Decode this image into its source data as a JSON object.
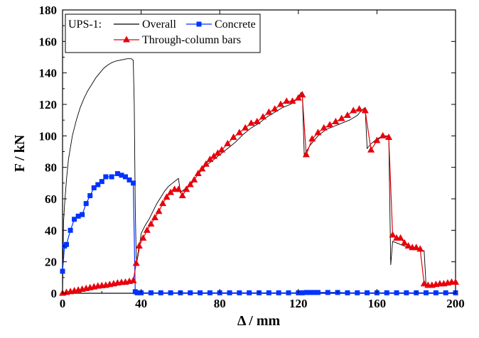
{
  "chart_data": {
    "type": "line",
    "legend_title": "UPS-1:",
    "legend_placement": "top-left",
    "xlabel": "Δ / mm",
    "ylabel": "F / kN",
    "xlim": [
      0,
      200
    ],
    "ylim": [
      0,
      180
    ],
    "xticks": [
      0,
      40,
      80,
      120,
      160,
      200
    ],
    "yticks": [
      0,
      20,
      40,
      60,
      80,
      100,
      120,
      140,
      160,
      180
    ],
    "grid": false,
    "series": [
      {
        "name": "Overall",
        "color": "#000000",
        "marker": "none",
        "x": [
          0,
          0.5,
          1,
          2,
          3,
          5,
          7,
          9,
          11,
          13,
          15,
          17,
          19,
          21,
          23,
          25,
          27,
          29,
          31,
          33,
          34,
          35,
          36,
          36.5,
          37,
          37.5,
          38,
          39,
          40,
          42,
          44,
          46,
          48,
          50,
          52,
          54,
          56,
          58,
          59,
          60,
          61,
          62,
          64,
          66,
          68,
          70,
          72,
          74,
          76,
          78,
          80,
          84,
          88,
          92,
          96,
          100,
          104,
          108,
          112,
          116,
          118,
          120,
          121,
          122,
          123,
          126,
          130,
          134,
          138,
          142,
          146,
          150,
          152,
          153,
          154,
          155,
          157,
          160,
          163,
          165,
          166,
          166.5,
          167,
          168,
          170,
          172,
          174,
          176,
          178,
          180,
          182,
          183,
          184,
          185,
          190,
          195,
          200
        ],
        "y": [
          0,
          45,
          56,
          72,
          85,
          100,
          110,
          118,
          124,
          129,
          133,
          137,
          140,
          143,
          145,
          146.5,
          147.5,
          148,
          148.5,
          149,
          149,
          149,
          148,
          120,
          55,
          22,
          21,
          28,
          38,
          43,
          47,
          52,
          57,
          61,
          65,
          68,
          70,
          72,
          73,
          64,
          65,
          66,
          68,
          70,
          74,
          77,
          80,
          82,
          84,
          86,
          88,
          92,
          96,
          101,
          105,
          108,
          112,
          115,
          118,
          120,
          122,
          124,
          127,
          128,
          88,
          94,
          100,
          104,
          106,
          108,
          110,
          113,
          116,
          117,
          118,
          92,
          95,
          98,
          100,
          100,
          100,
          60,
          18,
          33,
          32,
          31,
          30,
          29,
          28,
          28,
          28,
          27,
          27,
          5,
          5,
          5,
          6
        ]
      },
      {
        "name": "Concrete",
        "color": "#0033ff",
        "marker": "square",
        "x": [
          0,
          1,
          2,
          4,
          6,
          8,
          10,
          12,
          14,
          16,
          18,
          20,
          22,
          25,
          28,
          30,
          32,
          34,
          36,
          37,
          38,
          40,
          45,
          50,
          55,
          60,
          65,
          70,
          75,
          80,
          85,
          90,
          95,
          100,
          105,
          110,
          115,
          120,
          122,
          124,
          126,
          128,
          130,
          135,
          140,
          145,
          150,
          155,
          160,
          165,
          170,
          175,
          180,
          185,
          190,
          195,
          200
        ],
        "y": [
          14,
          30,
          31,
          40,
          47,
          49,
          50,
          57,
          62,
          67,
          69,
          71,
          74,
          74,
          76,
          75,
          74,
          72,
          70,
          1,
          0.3,
          0.3,
          0.3,
          0.3,
          0.3,
          0.3,
          0.3,
          0.3,
          0.3,
          0.3,
          0.3,
          0.3,
          0.3,
          0.3,
          0.3,
          0.3,
          0.3,
          0.3,
          0.3,
          0.5,
          0.5,
          0.5,
          0.5,
          0.5,
          0.5,
          0.3,
          0.3,
          0.3,
          0.3,
          0.3,
          0.3,
          0.3,
          0.3,
          0.3,
          0.3,
          0.3,
          0.3
        ]
      },
      {
        "name": "Through-column bars",
        "color": "#e8000b",
        "marker": "triangle",
        "x": [
          0,
          2,
          4,
          6,
          8,
          10,
          12,
          14,
          16,
          18,
          20,
          22,
          24,
          26,
          28,
          30,
          32,
          34,
          36,
          37.5,
          39,
          41,
          43,
          45,
          47,
          49,
          51,
          53,
          55,
          57,
          59,
          61,
          63,
          65,
          67,
          69,
          71,
          73,
          75,
          77,
          79,
          81,
          84,
          87,
          90,
          93,
          96,
          99,
          102,
          105,
          108,
          111,
          114,
          117,
          120,
          122,
          124,
          127,
          130,
          133,
          136,
          139,
          142,
          145,
          148,
          151,
          154,
          157,
          160,
          163,
          166,
          168,
          170,
          172,
          174,
          176,
          178,
          180,
          182,
          184,
          186,
          188,
          190,
          192,
          194,
          196,
          198,
          200
        ],
        "y": [
          0,
          0.5,
          1,
          1.5,
          2,
          2.5,
          3,
          3.5,
          4,
          4.5,
          4.8,
          5,
          5.5,
          6,
          6.5,
          6.8,
          7,
          7.5,
          8,
          19,
          30,
          35,
          40,
          44,
          48,
          52,
          57,
          61,
          64,
          66,
          66,
          62,
          66,
          69,
          72,
          76,
          79,
          82,
          85,
          87,
          89,
          91,
          95,
          99,
          102,
          105,
          108,
          109,
          112,
          115,
          117,
          120,
          122,
          122,
          124,
          126,
          88,
          98,
          102,
          105,
          107,
          109,
          111,
          113,
          116,
          117,
          116,
          91,
          97,
          100,
          99,
          37,
          35,
          35,
          32,
          30,
          29,
          29,
          28,
          6,
          5,
          5,
          5.5,
          6,
          6,
          6.5,
          7,
          7
        ]
      }
    ]
  }
}
